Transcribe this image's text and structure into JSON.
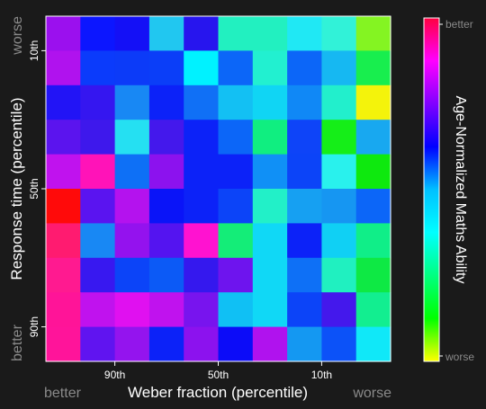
{
  "chart_data": {
    "type": "heatmap",
    "xlabel": "Weber fraction (percentile)",
    "ylabel": "Response time (percentile)",
    "x_ticks": [
      "90th",
      "50th",
      "10th"
    ],
    "y_ticks": [
      "10th",
      "50th",
      "90th"
    ],
    "x_end_labels": {
      "left": "better",
      "right": "worse"
    },
    "y_end_labels": {
      "top": "worse",
      "bottom": "better"
    },
    "colorbar": {
      "label": "Age-Normalized Maths Ability",
      "top_label": "better",
      "bottom_label": "worse",
      "colors_top_to_bottom": [
        "#ff0040",
        "#ff00ff",
        "#8000ff",
        "#0000ff",
        "#00c0ff",
        "#00ffff",
        "#00ff80",
        "#00ff00",
        "#ffff00"
      ]
    },
    "grid_rows": 10,
    "grid_cols": 10,
    "cells": [
      [
        "#9b10ee",
        "#0c16ff",
        "#1410f6",
        "#21c7f0",
        "#2715ee",
        "#22f0c0",
        "#22f0c0",
        "#20e8f4",
        "#31f2d8",
        "#84f422"
      ],
      [
        "#b012ee",
        "#0b3bfb",
        "#0c3bf8",
        "#0b3ef8",
        "#00f2ff",
        "#0c66f8",
        "#22f0d0",
        "#0c66f8",
        "#16b8f2",
        "#18ee4e"
      ],
      [
        "#2214f6",
        "#3516f0",
        "#1888f4",
        "#0c22f8",
        "#1070f6",
        "#13c0f3",
        "#10d5f4",
        "#1088f6",
        "#22efcc",
        "#f4f30b"
      ],
      [
        "#5b14ee",
        "#3e18ec",
        "#25e0f2",
        "#4418ec",
        "#0c22f8",
        "#0c66f8",
        "#10ee80",
        "#0e44f8",
        "#15ee18",
        "#18a8f0"
      ],
      [
        "#c012ee",
        "#ff13b8",
        "#0e70f6",
        "#8c12ee",
        "#0c22f8",
        "#0c22f8",
        "#1090f6",
        "#0c44f8",
        "#29f1ed",
        "#0ee90e"
      ],
      [
        "#ff0a0a",
        "#5a14f0",
        "#b412ee",
        "#0a14f8",
        "#0c22f8",
        "#0c44f8",
        "#22f0c8",
        "#16a0f2",
        "#1696f2",
        "#0c66f8"
      ],
      [
        "#ff1b70",
        "#1888f4",
        "#9412ee",
        "#5414f0",
        "#ff12d0",
        "#14ed78",
        "#10d8f6",
        "#0c22f8",
        "#10d0f4",
        "#10ee88"
      ],
      [
        "#ff1a90",
        "#3818f0",
        "#0c44f8",
        "#0c5af6",
        "#3518ee",
        "#6e14ee",
        "#10d8f6",
        "#0e70f6",
        "#20f0c0",
        "#0ee944"
      ],
      [
        "#ff1498",
        "#c012ee",
        "#e010f0",
        "#c012ee",
        "#7814ee",
        "#10c0f4",
        "#10d8f6",
        "#0c44f8",
        "#4418ec",
        "#12ee90"
      ],
      [
        "#ff149a",
        "#6014f0",
        "#9414ee",
        "#0c22f8",
        "#8c12ee",
        "#0c0cf8",
        "#b012ee",
        "#1498f2",
        "#0c52f8",
        "#10e8f8"
      ]
    ]
  }
}
